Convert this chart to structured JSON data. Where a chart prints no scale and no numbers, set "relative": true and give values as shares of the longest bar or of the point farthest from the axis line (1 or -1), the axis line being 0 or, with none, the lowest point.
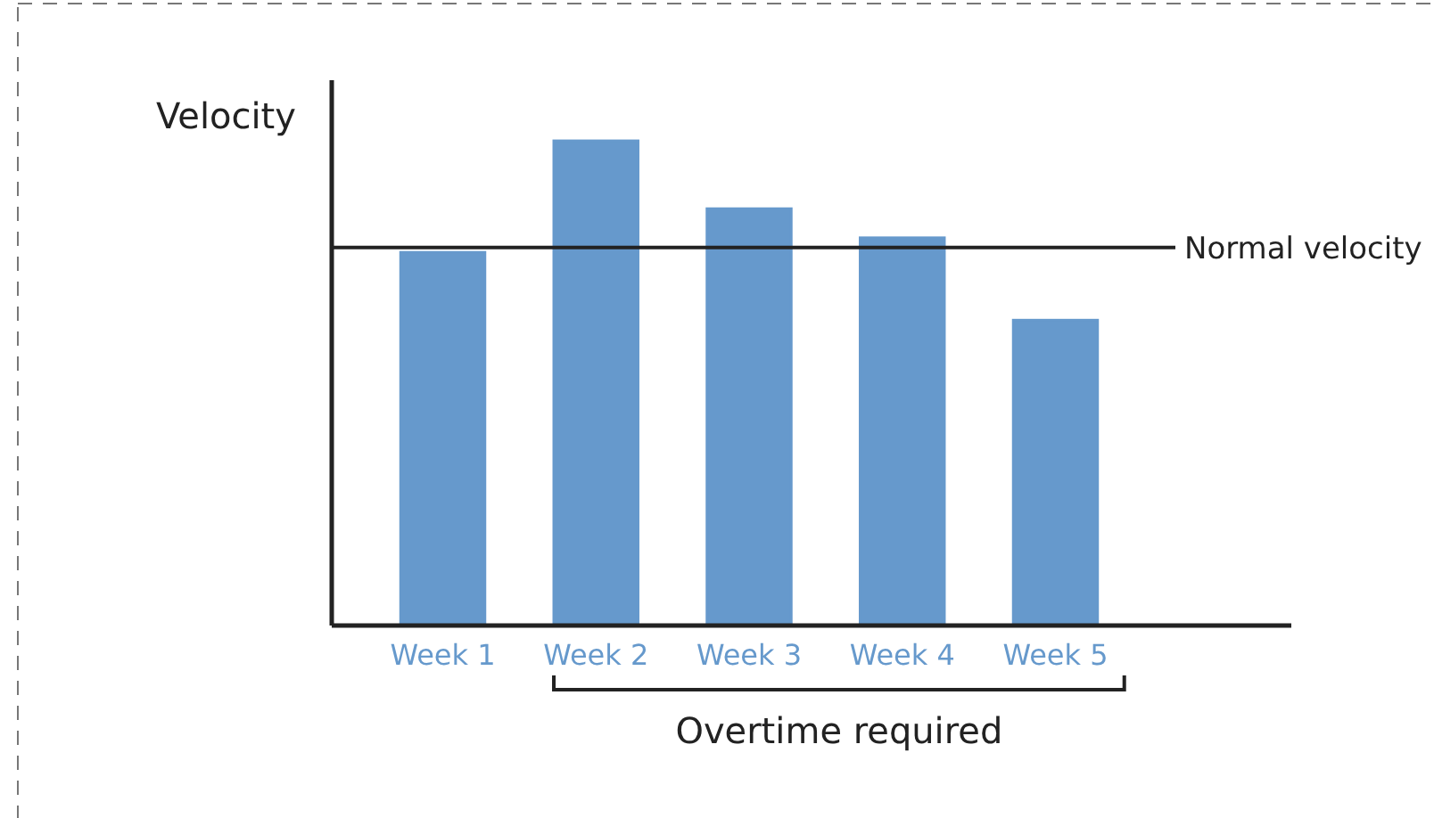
{
  "chart_data": {
    "type": "bar",
    "ylabel": "Velocity",
    "relative": true,
    "categories": [
      "Week 1",
      "Week 2",
      "Week 3",
      "Week 4",
      "Week 5"
    ],
    "values": [
      0.77,
      1,
      0.86,
      0.8,
      0.63
    ],
    "color": "#6699cc",
    "ref_lines": [
      {
        "axis": "y",
        "value": 0.78,
        "label": "Normal velocity",
        "color": "#222222"
      }
    ],
    "annotations": [
      "Overtime required"
    ]
  }
}
